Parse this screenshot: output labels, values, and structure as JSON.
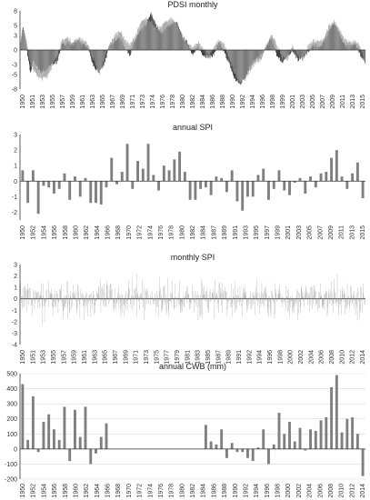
{
  "chart_data": [
    {
      "id": "pdsi",
      "type": "bar",
      "title": "PDSI monthly",
      "xlabel": "",
      "ylabel": "",
      "ylim": [
        -8,
        8
      ],
      "yticks": [
        "8",
        "5",
        "3",
        "0",
        "-3",
        "-5",
        "-8"
      ],
      "ytick_values": [
        8,
        5,
        3,
        0,
        -3,
        -5,
        -8
      ],
      "grid": false,
      "xtick_labels": [
        "1950",
        "1951",
        "1953",
        "1955",
        "1957",
        "1959",
        "1961",
        "1963",
        "1965",
        "1967",
        "1969",
        "1971",
        "1973",
        "1974",
        "1976",
        "1978",
        "1980",
        "1982",
        "1984",
        "1986",
        "1988",
        "1990",
        "1992",
        "1994",
        "1996",
        "1998",
        "1999",
        "2001",
        "2003",
        "2005",
        "2007",
        "2009",
        "2011",
        "2013",
        "2015"
      ],
      "x_start": 1950,
      "x_end": 2016,
      "series": [
        {
          "color": "#111111",
          "anchors": [
            [
              1950.0,
              0.5
            ],
            [
              1950.5,
              4.8
            ],
            [
              1951.0,
              2.0
            ],
            [
              1951.5,
              -1.5
            ],
            [
              1952.0,
              -5.0
            ],
            [
              1952.5,
              -2.0
            ],
            [
              1953.0,
              -3.0
            ],
            [
              1954.0,
              -4.5
            ],
            [
              1955.0,
              -4.0
            ],
            [
              1956.0,
              -3.0
            ],
            [
              1957.0,
              -2.5
            ],
            [
              1958.0,
              1.0
            ],
            [
              1959.0,
              1.5
            ],
            [
              1960.0,
              1.0
            ],
            [
              1961.0,
              2.0
            ],
            [
              1962.0,
              1.0
            ],
            [
              1963.0,
              0.5
            ],
            [
              1964.0,
              -3.5
            ],
            [
              1965.0,
              -4.5
            ],
            [
              1966.0,
              -3.0
            ],
            [
              1967.0,
              0.5
            ],
            [
              1968.0,
              2.0
            ],
            [
              1969.0,
              2.5
            ],
            [
              1970.0,
              0.5
            ],
            [
              1971.0,
              -1.0
            ],
            [
              1972.0,
              2.0
            ],
            [
              1973.0,
              4.0
            ],
            [
              1974.0,
              5.0
            ],
            [
              1975.0,
              7.5
            ],
            [
              1976.0,
              5.0
            ],
            [
              1977.0,
              3.5
            ],
            [
              1978.0,
              4.5
            ],
            [
              1979.0,
              5.5
            ],
            [
              1980.0,
              5.5
            ],
            [
              1981.0,
              2.5
            ],
            [
              1982.0,
              1.5
            ],
            [
              1983.0,
              -1.0
            ],
            [
              1984.0,
              0.5
            ],
            [
              1985.0,
              -1.0
            ],
            [
              1986.0,
              -1.5
            ],
            [
              1987.0,
              -1.0
            ],
            [
              1988.0,
              1.5
            ],
            [
              1989.0,
              -0.5
            ],
            [
              1990.0,
              -3.0
            ],
            [
              1991.0,
              -6.0
            ],
            [
              1992.0,
              -7.0
            ],
            [
              1993.0,
              -5.5
            ],
            [
              1994.0,
              -3.0
            ],
            [
              1995.0,
              -2.0
            ],
            [
              1996.0,
              -1.0
            ],
            [
              1997.0,
              0.5
            ],
            [
              1998.0,
              2.5
            ],
            [
              1999.0,
              -1.0
            ],
            [
              2000.0,
              -2.5
            ],
            [
              2001.0,
              -1.5
            ],
            [
              2002.0,
              0.0
            ],
            [
              2003.0,
              -2.0
            ],
            [
              2004.0,
              -1.5
            ],
            [
              2005.0,
              -0.5
            ],
            [
              2006.0,
              1.0
            ],
            [
              2007.0,
              0.5
            ],
            [
              2008.0,
              1.5
            ],
            [
              2009.0,
              4.0
            ],
            [
              2010.0,
              5.5
            ],
            [
              2011.0,
              3.0
            ],
            [
              2012.0,
              1.0
            ],
            [
              2013.0,
              0.5
            ],
            [
              2014.0,
              1.5
            ],
            [
              2015.0,
              -1.0
            ],
            [
              2015.9,
              -2.5
            ]
          ]
        },
        {
          "color": "#9a9a9a",
          "anchors": [
            [
              1950.0,
              2.0
            ],
            [
              1950.5,
              4.5
            ],
            [
              1951.0,
              3.0
            ],
            [
              1951.5,
              -0.5
            ],
            [
              1952.0,
              -3.0
            ],
            [
              1953.0,
              -5.0
            ],
            [
              1954.0,
              -6.0
            ],
            [
              1955.0,
              -5.5
            ],
            [
              1956.0,
              -3.5
            ],
            [
              1957.0,
              -1.0
            ],
            [
              1958.0,
              2.0
            ],
            [
              1959.0,
              2.5
            ],
            [
              1960.0,
              1.5
            ],
            [
              1961.0,
              2.5
            ],
            [
              1962.0,
              2.0
            ],
            [
              1963.0,
              1.0
            ],
            [
              1964.0,
              -2.0
            ],
            [
              1965.0,
              -5.0
            ],
            [
              1966.0,
              -2.0
            ],
            [
              1967.0,
              1.0
            ],
            [
              1968.0,
              3.0
            ],
            [
              1969.0,
              4.0
            ],
            [
              1970.0,
              2.0
            ],
            [
              1971.0,
              1.0
            ],
            [
              1972.0,
              3.0
            ],
            [
              1973.0,
              5.5
            ],
            [
              1974.0,
              6.5
            ],
            [
              1975.0,
              6.0
            ],
            [
              1976.0,
              4.0
            ],
            [
              1977.0,
              5.0
            ],
            [
              1978.0,
              6.0
            ],
            [
              1979.0,
              6.5
            ],
            [
              1980.0,
              5.0
            ],
            [
              1981.0,
              3.0
            ],
            [
              1982.0,
              1.0
            ],
            [
              1983.0,
              0.5
            ],
            [
              1984.0,
              1.5
            ],
            [
              1985.0,
              0.0
            ],
            [
              1986.0,
              -1.0
            ],
            [
              1987.0,
              0.5
            ],
            [
              1988.0,
              2.0
            ],
            [
              1989.0,
              1.0
            ],
            [
              1990.0,
              -2.0
            ],
            [
              1991.0,
              -5.0
            ],
            [
              1992.0,
              -6.5
            ],
            [
              1993.0,
              -6.0
            ],
            [
              1994.0,
              -4.0
            ],
            [
              1995.0,
              -2.5
            ],
            [
              1996.0,
              -2.0
            ],
            [
              1997.0,
              1.0
            ],
            [
              1998.0,
              3.0
            ],
            [
              1999.0,
              1.0
            ],
            [
              2000.0,
              -1.5
            ],
            [
              2001.0,
              -2.0
            ],
            [
              2002.0,
              1.0
            ],
            [
              2003.0,
              -1.0
            ],
            [
              2004.0,
              -2.0
            ],
            [
              2005.0,
              1.0
            ],
            [
              2006.0,
              2.0
            ],
            [
              2007.0,
              1.5
            ],
            [
              2008.0,
              2.5
            ],
            [
              2009.0,
              5.0
            ],
            [
              2010.0,
              6.0
            ],
            [
              2011.0,
              4.0
            ],
            [
              2012.0,
              2.0
            ],
            [
              2013.0,
              1.5
            ],
            [
              2014.0,
              2.0
            ],
            [
              2015.0,
              0.5
            ],
            [
              2015.9,
              -3.0
            ]
          ]
        }
      ]
    },
    {
      "id": "annual-spi",
      "type": "bar",
      "title": "annual SPI",
      "xlabel": "",
      "ylabel": "",
      "ylim": [
        -2.5,
        3
      ],
      "yticks": [
        "3",
        "2",
        "1",
        "0",
        "-1",
        "-2"
      ],
      "ytick_values": [
        3,
        2,
        1,
        0,
        -1,
        -2
      ],
      "grid": false,
      "xtick_labels": [
        "1950",
        "1952",
        "1954",
        "1956",
        "1958",
        "1960",
        "1962",
        "1964",
        "1966",
        "1968",
        "1970",
        "1972",
        "1974",
        "1976",
        "1978",
        "1980",
        "1982",
        "1984",
        "1987",
        "1989",
        "1991",
        "1993",
        "1995",
        "1997",
        "1999",
        "2001",
        "2003",
        "2005",
        "2007",
        "2009",
        "2011",
        "2013",
        "2015"
      ],
      "x": [
        1950,
        1951,
        1952,
        1953,
        1954,
        1955,
        1956,
        1957,
        1958,
        1959,
        1960,
        1961,
        1962,
        1963,
        1964,
        1965,
        1966,
        1967,
        1968,
        1969,
        1970,
        1971,
        1972,
        1973,
        1974,
        1975,
        1976,
        1977,
        1978,
        1979,
        1980,
        1981,
        1982,
        1983,
        1984,
        1985,
        1986,
        1987,
        1988,
        1989,
        1990,
        1991,
        1992,
        1993,
        1994,
        1995,
        1996,
        1997,
        1998,
        1999,
        2000,
        2001,
        2002,
        2003,
        2004,
        2005,
        2006,
        2007,
        2008,
        2009,
        2010,
        2011,
        2012,
        2013,
        2014,
        2015
      ],
      "values": [
        0.7,
        -1.4,
        0.7,
        -2.1,
        -0.3,
        -0.4,
        -0.8,
        -0.5,
        0.5,
        -1.2,
        0.3,
        -1.0,
        0.2,
        -1.4,
        -1.4,
        -1.5,
        -0.4,
        1.5,
        -0.2,
        0.6,
        2.4,
        -0.5,
        1.3,
        0.8,
        2.4,
        0.4,
        -0.6,
        1.0,
        0.7,
        1.4,
        1.9,
        0.6,
        -1.2,
        -1.2,
        -0.5,
        -0.4,
        -0.9,
        0.3,
        0.2,
        -0.7,
        0.7,
        -1.3,
        -1.9,
        -1.0,
        -1.0,
        0.4,
        0.8,
        -1.2,
        -0.5,
        0.7,
        -0.6,
        -0.9,
        -0.1,
        0.2,
        -0.8,
        0.3,
        -0.4,
        0.5,
        0.6,
        1.5,
        2.0,
        0.3,
        -0.5,
        0.5,
        1.2,
        -1.1
      ]
    },
    {
      "id": "monthly-spi",
      "type": "bar",
      "title": "monthly SPI",
      "xlabel": "",
      "ylabel": "",
      "ylim": [
        -4,
        3
      ],
      "yticks": [
        "3",
        "2",
        "1",
        "0",
        "-1",
        "-2",
        "-3",
        "-4"
      ],
      "ytick_values": [
        3,
        2,
        1,
        0,
        -1,
        -2,
        -3,
        -4
      ],
      "grid": false,
      "xtick_labels": [
        "1950",
        "1951",
        "1953",
        "1955",
        "1957",
        "1959",
        "1961",
        "1963",
        "1965",
        "1967",
        "1969",
        "1971",
        "1973",
        "1975",
        "1977",
        "1979",
        "1981",
        "1983",
        "1985",
        "1987",
        "1989",
        "1991",
        "1992",
        "1994",
        "1996",
        "1998",
        "2000",
        "2002",
        "2004",
        "2006",
        "2008",
        "2010",
        "2012",
        "2014"
      ],
      "x_start": 1950,
      "x_end": 2016,
      "n_months": 792,
      "color": "#a6a6a6"
    },
    {
      "id": "annual-cwb",
      "type": "bar",
      "title": "annual CWB (mm)",
      "xlabel": "",
      "ylabel": "",
      "ylim": [
        -200,
        500
      ],
      "yticks": [
        "500",
        "400",
        "300",
        "200",
        "100",
        "0",
        "-100",
        "-200"
      ],
      "ytick_values": [
        500,
        400,
        300,
        200,
        100,
        0,
        -100,
        -200
      ],
      "grid": true,
      "xtick_labels": [
        "1950",
        "1952",
        "1954",
        "1956",
        "1958",
        "1960",
        "1962",
        "1964",
        "1966",
        "1968",
        "1970",
        "1972",
        "1974",
        "1976",
        "1978",
        "1980",
        "1982",
        "1984",
        "1986",
        "1988",
        "1990",
        "1992",
        "1994",
        "1996",
        "1998",
        "2000",
        "2002",
        "2004",
        "2006",
        "2008",
        "2010",
        "2012",
        "2014"
      ],
      "x": [
        1950,
        1951,
        1952,
        1953,
        1954,
        1955,
        1956,
        1957,
        1958,
        1959,
        1960,
        1961,
        1962,
        1963,
        1964,
        1965,
        1966,
        1967,
        1968,
        1969,
        1970,
        1971,
        1972,
        1973,
        1974,
        1975,
        1976,
        1977,
        1978,
        1979,
        1980,
        1981,
        1982,
        1983,
        1984,
        1985,
        1986,
        1987,
        1988,
        1989,
        1990,
        1991,
        1992,
        1993,
        1994,
        1995,
        1996,
        1997,
        1998,
        1999,
        2000,
        2001,
        2002,
        2003,
        2004,
        2005,
        2006,
        2007,
        2008,
        2009,
        2010,
        2011,
        2012,
        2013,
        2014,
        2015
      ],
      "values": [
        430,
        60,
        350,
        -20,
        180,
        230,
        130,
        60,
        280,
        -80,
        260,
        80,
        280,
        -100,
        -30,
        80,
        170,
        0,
        0,
        0,
        0,
        0,
        0,
        0,
        0,
        0,
        0,
        0,
        0,
        0,
        0,
        0,
        0,
        0,
        0,
        160,
        50,
        30,
        130,
        -60,
        40,
        -20,
        -20,
        -60,
        -80,
        10,
        130,
        -100,
        30,
        240,
        100,
        180,
        50,
        140,
        -10,
        130,
        120,
        190,
        210,
        410,
        490,
        110,
        200,
        210,
        100,
        -180
      ]
    }
  ]
}
